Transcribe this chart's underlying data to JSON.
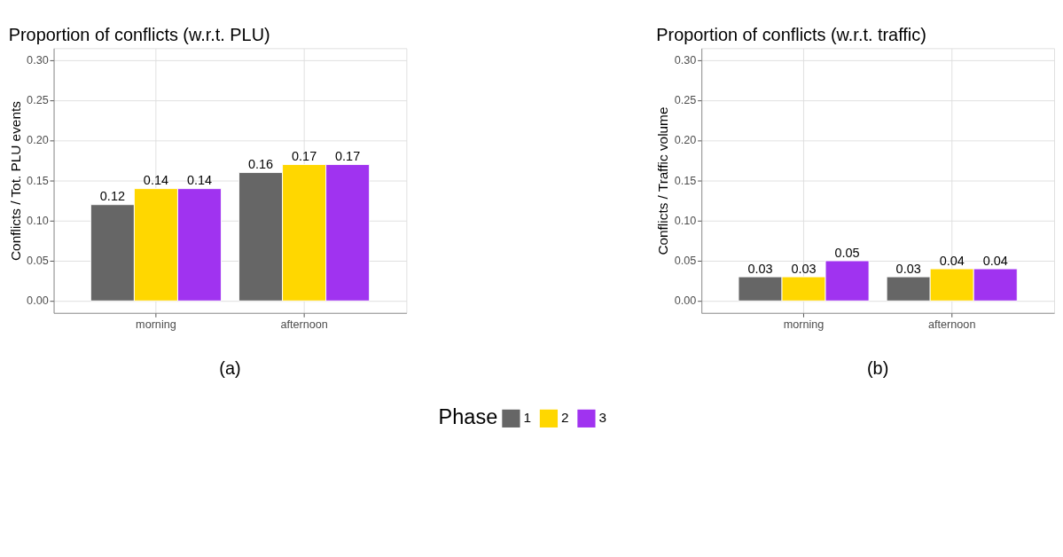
{
  "chart_data": [
    {
      "type": "bar",
      "title": "Proportion of conflicts (w.r.t. PLU)",
      "ylabel": "Conflicts / Tot. PLU events",
      "categories": [
        "morning",
        "afternoon"
      ],
      "legend_title": "Phase",
      "legend": "bottom",
      "grid": true,
      "data_labels": true,
      "annotations": [
        "(a)"
      ],
      "ylim": [
        -0.015,
        0.315
      ],
      "yticks": [
        {
          "value": 0,
          "label": "0.00"
        },
        0.05,
        {
          "value": 0.1,
          "label": "0.10"
        },
        0.15,
        {
          "value": 0.2,
          "label": "0.20"
        },
        0.25,
        {
          "value": 0.3,
          "label": "0.30"
        }
      ],
      "series": [
        {
          "name": "1",
          "color": "#666666",
          "values": [
            0.12,
            0.16
          ]
        },
        {
          "name": "2",
          "color": "#ffd700",
          "values": [
            0.14,
            0.17
          ]
        },
        {
          "name": "3",
          "color": "#a033f0",
          "values": [
            0.14,
            0.17
          ]
        }
      ]
    },
    {
      "type": "bar",
      "title": "Proportion of conflicts (w.r.t. traffic)",
      "ylabel": "Conflicts / Traffic volume",
      "categories": [
        "morning",
        "afternoon"
      ],
      "grid": true,
      "data_labels": true,
      "annotations": [
        "(b)"
      ],
      "ylim": [
        -0.015,
        0.315
      ],
      "yticks": [
        {
          "value": 0,
          "label": "0.00"
        },
        0.05,
        {
          "value": 0.1,
          "label": "0.10"
        },
        0.15,
        {
          "value": 0.2,
          "label": "0.20"
        },
        0.25,
        {
          "value": 0.3,
          "label": "0.30"
        }
      ],
      "series": [
        {
          "name": "1",
          "color": "#666666",
          "values": [
            0.03,
            0.03
          ]
        },
        {
          "name": "2",
          "color": "#ffd700",
          "values": [
            0.03,
            0.04
          ]
        },
        {
          "name": "3",
          "color": "#a033f0",
          "values": [
            0.05,
            0.04
          ]
        }
      ]
    }
  ]
}
